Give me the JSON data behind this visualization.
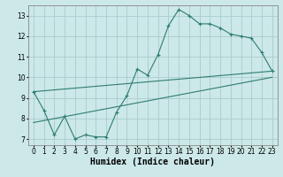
{
  "xlabel": "Humidex (Indice chaleur)",
  "ylabel": "",
  "background_color": "#cce8e8",
  "grid_color": "#aacccc",
  "line_color": "#2e7d6e",
  "xlim": [
    -0.5,
    23.5
  ],
  "ylim": [
    6.7,
    13.5
  ],
  "xticks": [
    0,
    1,
    2,
    3,
    4,
    5,
    6,
    7,
    8,
    9,
    10,
    11,
    12,
    13,
    14,
    15,
    16,
    17,
    18,
    19,
    20,
    21,
    22,
    23
  ],
  "yticks": [
    7,
    8,
    9,
    10,
    11,
    12,
    13
  ],
  "line1_x": [
    0,
    1,
    2,
    3,
    4,
    5,
    6,
    7,
    8,
    9,
    10,
    11,
    12,
    13,
    14,
    15,
    16,
    17,
    18,
    19,
    20,
    21,
    22,
    23
  ],
  "line1_y": [
    9.3,
    8.4,
    7.2,
    8.1,
    7.0,
    7.2,
    7.1,
    7.1,
    8.3,
    9.1,
    10.4,
    10.1,
    11.1,
    12.5,
    13.3,
    13.0,
    12.6,
    12.6,
    12.4,
    12.1,
    12.0,
    11.9,
    11.2,
    10.3
  ],
  "line2_x": [
    0,
    23
  ],
  "line2_y": [
    9.3,
    10.3
  ],
  "line3_x": [
    0,
    23
  ],
  "line3_y": [
    7.8,
    10.0
  ],
  "fontsize_xlabel": 7,
  "tick_fontsize": 5.5
}
